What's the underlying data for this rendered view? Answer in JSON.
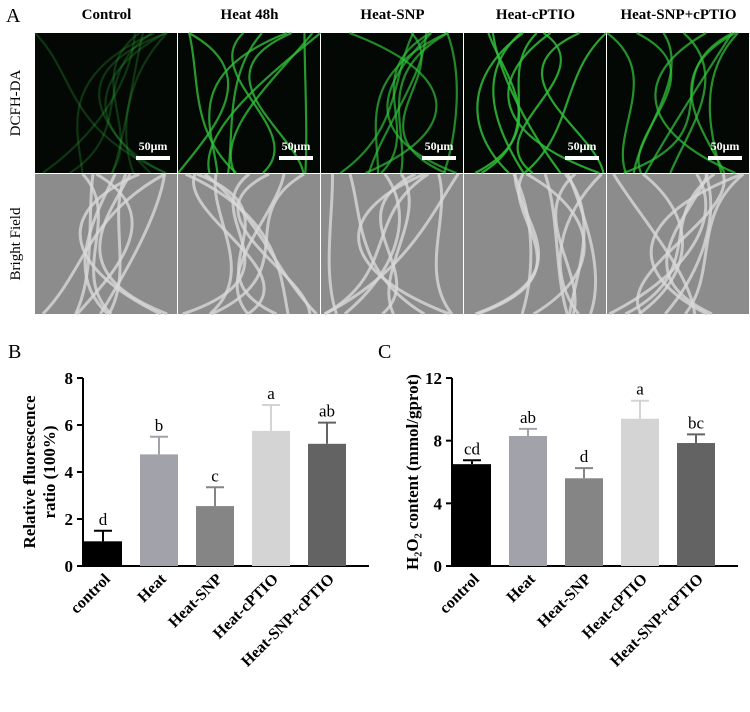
{
  "panel_a": {
    "label": "A",
    "columns": [
      "Control",
      "Heat 48h",
      "Heat-SNP",
      "Heat-cPTIO",
      "Heat-SNP+cPTIO"
    ],
    "rows": [
      "DCFH-DA",
      "Bright Field"
    ],
    "scale_bar": "50μm"
  },
  "chart_data": [
    {
      "type": "bar",
      "label": "B",
      "ylabel": [
        "Relative fluorescence",
        "ratio (100%)"
      ],
      "categories": [
        "control",
        "Heat",
        "Heat-SNP",
        "Heat-cPTIO",
        "Heat-SNP+cPTIO"
      ],
      "values": [
        1.05,
        4.75,
        2.55,
        5.75,
        5.2
      ],
      "errors": [
        0.45,
        0.75,
        0.8,
        1.1,
        0.9
      ],
      "significance": [
        "d",
        "b",
        "c",
        "a",
        "ab"
      ],
      "colors": [
        "#000000",
        "#a2a2aa",
        "#858585",
        "#d4d4d4",
        "#636363"
      ],
      "ylim": [
        0,
        8
      ],
      "yticks": [
        0,
        2,
        4,
        6,
        8
      ]
    },
    {
      "type": "bar",
      "label": "C",
      "ylabel": [
        "H₂O₂ content (mmol/gprot)"
      ],
      "categories": [
        "control",
        "Heat",
        "Heat-SNP",
        "Heat-cPTIO",
        "Heat-SNP+cPTIO"
      ],
      "values": [
        6.5,
        8.3,
        5.6,
        9.4,
        7.85
      ],
      "errors": [
        0.25,
        0.45,
        0.65,
        1.15,
        0.55
      ],
      "significance": [
        "cd",
        "ab",
        "d",
        "a",
        "bc"
      ],
      "colors": [
        "#000000",
        "#a2a2aa",
        "#858585",
        "#d4d4d4",
        "#636363"
      ],
      "ylim": [
        0,
        12
      ],
      "yticks": [
        0,
        4,
        8,
        12
      ]
    }
  ]
}
